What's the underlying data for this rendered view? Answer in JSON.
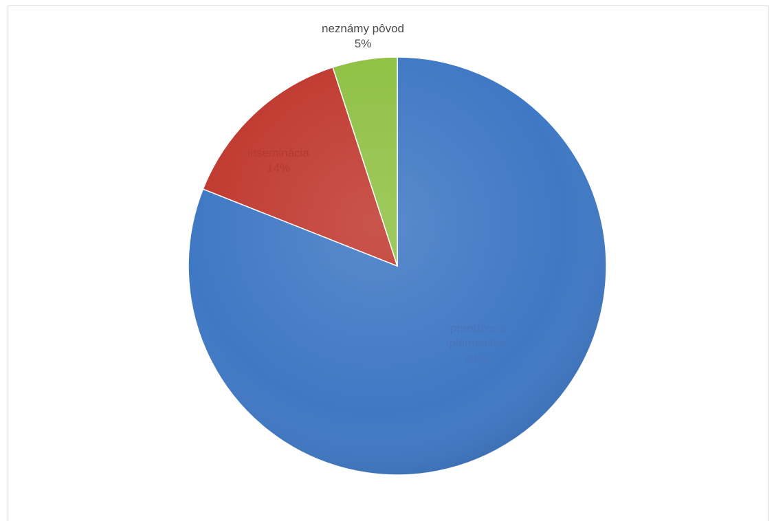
{
  "chart_data": {
    "type": "pie",
    "title": "",
    "legend": "none",
    "slices": [
      {
        "label_lines": [
          "prirodzená",
          "plemenitba"
        ],
        "value": 81,
        "value_label": "81%",
        "color": "#3f78c4",
        "label_color": "#4a74b8"
      },
      {
        "label_lines": [
          "inseminácia"
        ],
        "value": 14,
        "value_label": "14%",
        "color": "#c0392f",
        "label_color": "#b43a32"
      },
      {
        "label_lines": [
          "neznámy pôvod"
        ],
        "value": 5,
        "value_label": "5%",
        "color": "#8fc043",
        "label_color": "#4a4a4a"
      }
    ]
  }
}
